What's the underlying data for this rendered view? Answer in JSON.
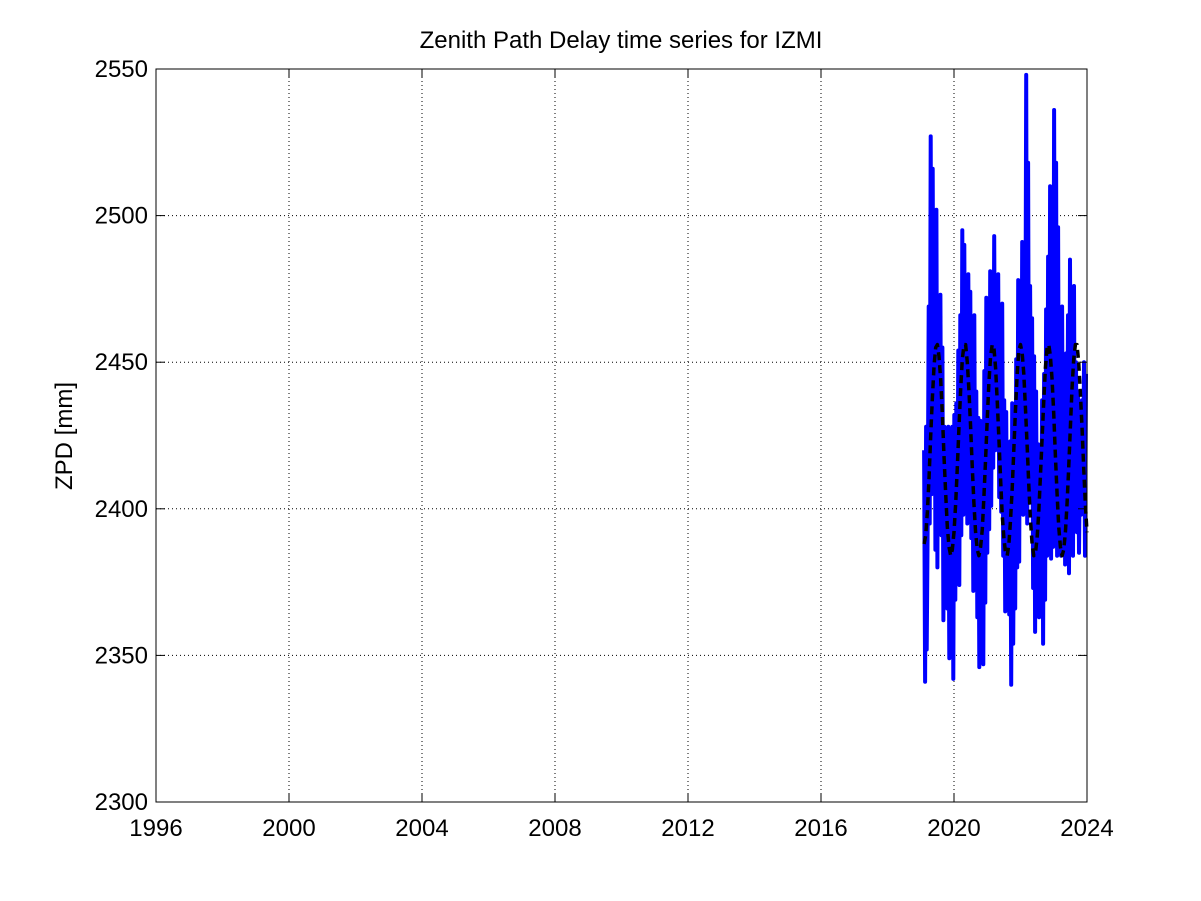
{
  "chart_data": {
    "type": "line",
    "title": "Zenith Path Delay time series for IZMI",
    "xlabel": "",
    "ylabel": "ZPD [mm]",
    "xlim": [
      1996,
      2024
    ],
    "ylim": [
      2300,
      2550
    ],
    "xticks": [
      1996,
      2000,
      2004,
      2008,
      2012,
      2016,
      2020,
      2024
    ],
    "yticks": [
      2300,
      2350,
      2400,
      2450,
      2500,
      2550
    ],
    "grid": true,
    "legend": "none",
    "colors": {
      "observed": "#0000ff",
      "model": "#000000",
      "grid": "#000000",
      "background": "#ffffff"
    },
    "series": [
      {
        "style": "solid",
        "color": "#0000ff",
        "x": [
          2019.1,
          2019.13,
          2019.16,
          2019.18,
          2019.21,
          2019.24,
          2019.27,
          2019.3,
          2019.33,
          2019.36,
          2019.38,
          2019.41,
          2019.44,
          2019.47,
          2019.5,
          2019.53,
          2019.56,
          2019.59,
          2019.62,
          2019.65,
          2019.68,
          2019.71,
          2019.74,
          2019.77,
          2019.8,
          2019.83,
          2019.86,
          2019.89,
          2019.92,
          2019.95,
          2019.98,
          2020.01,
          2020.04,
          2020.07,
          2020.1,
          2020.13,
          2020.16,
          2020.19,
          2020.22,
          2020.25,
          2020.28,
          2020.31,
          2020.34,
          2020.37,
          2020.4,
          2020.43,
          2020.46,
          2020.49,
          2020.52,
          2020.55,
          2020.58,
          2020.61,
          2020.64,
          2020.67,
          2020.7,
          2020.73,
          2020.76,
          2020.79,
          2020.82,
          2020.85,
          2020.88,
          2020.91,
          2020.94,
          2020.97,
          2021.0,
          2021.03,
          2021.06,
          2021.09,
          2021.12,
          2021.15,
          2021.18,
          2021.21,
          2021.24,
          2021.27,
          2021.3,
          2021.33,
          2021.36,
          2021.39,
          2021.42,
          2021.45,
          2021.48,
          2021.51,
          2021.54,
          2021.57,
          2021.6,
          2021.63,
          2021.66,
          2021.69,
          2021.72,
          2021.75,
          2021.78,
          2021.81,
          2021.84,
          2021.87,
          2021.9,
          2021.93,
          2021.96,
          2021.99,
          2022.02,
          2022.05,
          2022.08,
          2022.11,
          2022.14,
          2022.17,
          2022.2,
          2022.23,
          2022.26,
          2022.29,
          2022.32,
          2022.35,
          2022.38,
          2022.41,
          2022.44,
          2022.47,
          2022.5,
          2022.53,
          2022.56,
          2022.59,
          2022.62,
          2022.65,
          2022.68,
          2022.71,
          2022.74,
          2022.77,
          2022.8,
          2022.83,
          2022.86,
          2022.89,
          2022.92,
          2022.95,
          2022.98,
          2023.01,
          2023.04,
          2023.07,
          2023.1,
          2023.13,
          2023.16,
          2023.19,
          2023.22,
          2023.25,
          2023.28,
          2023.31,
          2023.34,
          2023.37,
          2023.4,
          2023.43,
          2023.46,
          2023.49,
          2023.52,
          2023.55,
          2023.58,
          2023.61,
          2023.64,
          2023.67,
          2023.7,
          2023.73,
          2023.76,
          2023.79,
          2023.82,
          2023.85,
          2023.88,
          2023.91,
          2023.94,
          2023.97
        ],
        "y": [
          2420,
          2341,
          2428,
          2352,
          2395,
          2469,
          2395,
          2527,
          2405,
          2516,
          2441,
          2496,
          2386,
          2502,
          2380,
          2469,
          2409,
          2473,
          2391,
          2455,
          2362,
          2428,
          2380,
          2407,
          2366,
          2428,
          2349,
          2415,
          2372,
          2428,
          2342,
          2432,
          2369,
          2436,
          2386,
          2454,
          2374,
          2466,
          2391,
          2495,
          2398,
          2490,
          2406,
          2463,
          2395,
          2480,
          2420,
          2474,
          2390,
          2440,
          2372,
          2466,
          2380,
          2440,
          2363,
          2431,
          2346,
          2430,
          2375,
          2420,
          2347,
          2447,
          2368,
          2472,
          2385,
          2465,
          2393,
          2481,
          2401,
          2470,
          2414,
          2493,
          2420,
          2460,
          2430,
          2480,
          2404,
          2447,
          2399,
          2470,
          2384,
          2437,
          2365,
          2433,
          2380,
          2416,
          2364,
          2423,
          2340,
          2436,
          2354,
          2412,
          2366,
          2451,
          2380,
          2478,
          2382,
          2476,
          2402,
          2491,
          2398,
          2478,
          2425,
          2548,
          2395,
          2518,
          2402,
          2476,
          2411,
          2465,
          2373,
          2452,
          2358,
          2440,
          2377,
          2422,
          2363,
          2418,
          2366,
          2437,
          2354,
          2446,
          2369,
          2468,
          2384,
          2486,
          2394,
          2510,
          2383,
          2500,
          2387,
          2536,
          2413,
          2518,
          2384,
          2496,
          2390,
          2451,
          2384,
          2469,
          2388,
          2451,
          2381,
          2453,
          2405,
          2466,
          2378,
          2485,
          2390,
          2472,
          2384,
          2476,
          2394,
          2450,
          2392,
          2440,
          2385,
          2420,
          2398,
          2437,
          2400,
          2450,
          2384,
          2446
        ]
      },
      {
        "style": "dashed",
        "color": "#000000",
        "x": [
          2019.1,
          2019.15,
          2019.2,
          2019.25,
          2019.3,
          2019.35,
          2019.4,
          2019.45,
          2019.5,
          2019.55,
          2019.6,
          2019.65,
          2019.7,
          2019.75,
          2019.8,
          2019.85,
          2019.9,
          2019.95,
          2020.0,
          2020.05,
          2020.1,
          2020.15,
          2020.2,
          2020.25,
          2020.3,
          2020.35,
          2020.4,
          2020.45,
          2020.5,
          2020.55,
          2020.6,
          2020.65,
          2020.7,
          2020.75,
          2020.8,
          2020.85,
          2020.9,
          2020.95,
          2021.0,
          2021.05,
          2021.1,
          2021.15,
          2021.2,
          2021.25,
          2021.3,
          2021.35,
          2021.4,
          2021.45,
          2021.5,
          2021.55,
          2021.6,
          2021.65,
          2021.7,
          2021.75,
          2021.8,
          2021.85,
          2021.9,
          2021.95,
          2022.0,
          2022.05,
          2022.1,
          2022.15,
          2022.2,
          2022.25,
          2022.3,
          2022.35,
          2022.4,
          2022.45,
          2022.5,
          2022.55,
          2022.6,
          2022.65,
          2022.7,
          2022.75,
          2022.8,
          2022.85,
          2022.9,
          2022.95,
          2023.0,
          2023.05,
          2023.1,
          2023.15,
          2023.2,
          2023.25,
          2023.3,
          2023.35,
          2023.4,
          2023.45,
          2023.5,
          2023.55,
          2023.6,
          2023.65,
          2023.7,
          2023.75,
          2023.8,
          2023.85,
          2023.9,
          2023.95,
          2024.0
        ],
        "y": [
          2388,
          2391,
          2399,
          2411,
          2425,
          2438,
          2449,
          2455,
          2456,
          2452,
          2444,
          2432,
          2418,
          2405,
          2394,
          2387,
          2384,
          2386,
          2392,
          2402,
          2414,
          2428,
          2441,
          2451,
          2456,
          2456,
          2450,
          2440,
          2428,
          2414,
          2402,
          2392,
          2386,
          2384,
          2387,
          2393,
          2404,
          2417,
          2431,
          2443,
          2452,
          2456,
          2455,
          2448,
          2437,
          2424,
          2410,
          2398,
          2390,
          2385,
          2384,
          2388,
          2396,
          2407,
          2420,
          2434,
          2446,
          2454,
          2456,
          2453,
          2446,
          2434,
          2421,
          2408,
          2396,
          2388,
          2384,
          2385,
          2390,
          2399,
          2411,
          2424,
          2437,
          2448,
          2455,
          2456,
          2452,
          2444,
          2432,
          2418,
          2405,
          2394,
          2387,
          2384,
          2386,
          2392,
          2402,
          2414,
          2428,
          2441,
          2451,
          2456,
          2456,
          2450,
          2440,
          2428,
          2414,
          2402,
          2392
        ]
      }
    ]
  }
}
